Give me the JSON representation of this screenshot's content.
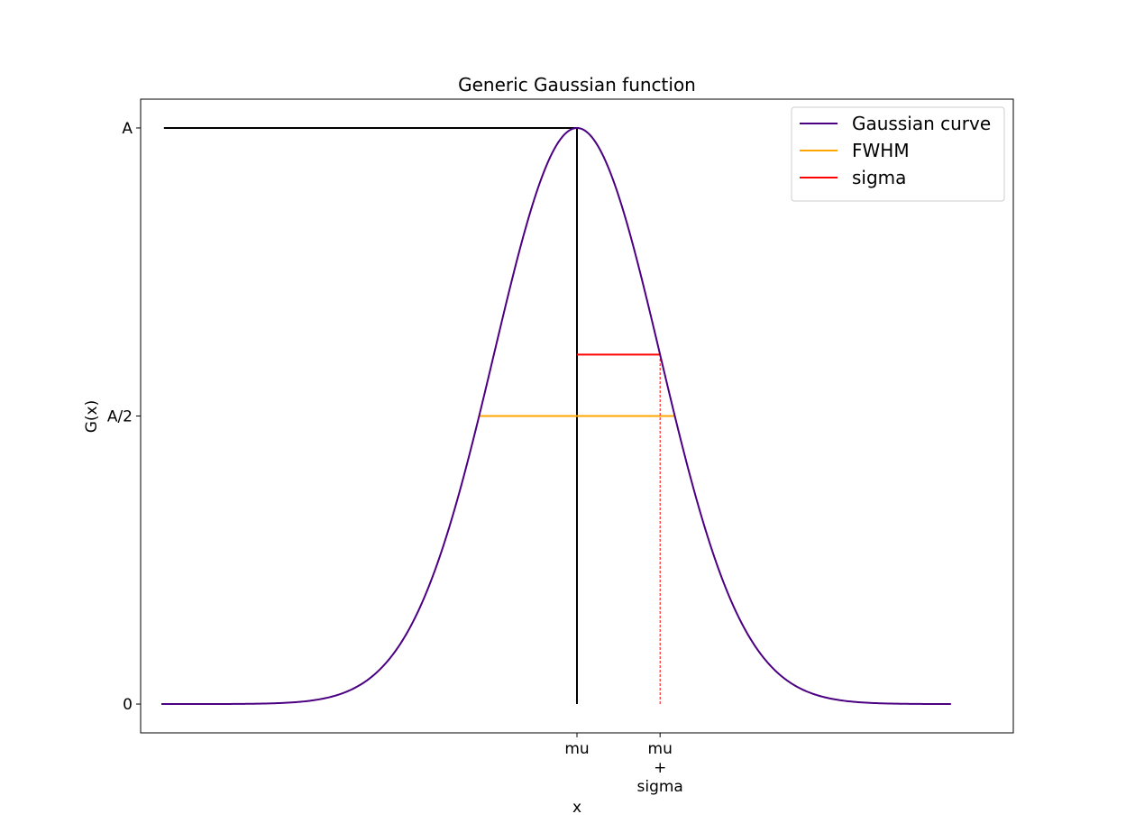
{
  "chart_data": {
    "type": "line",
    "title": "Generic Gaussian function",
    "xlabel": "x",
    "ylabel": "G(x)",
    "xlim": [
      -5.25,
      5.25
    ],
    "ylim": [
      -0.05,
      1.05
    ],
    "grid": false,
    "legend_position": "top-right",
    "gaussian": {
      "amplitude": 1,
      "mu": 0,
      "sigma": 1,
      "x_start": -5,
      "x_end": 4.5
    },
    "x_ticks": [
      {
        "value": 0,
        "label": "mu"
      },
      {
        "value": 1,
        "label": "mu\n+\nsigma"
      }
    ],
    "y_ticks": [
      {
        "value": 0,
        "label": "0"
      },
      {
        "value": 0.5,
        "label": "A/2"
      },
      {
        "value": 1,
        "label": "A"
      }
    ],
    "series": [
      {
        "name": "Gaussian curve",
        "color": "#4b0082"
      },
      {
        "name": "FWHM",
        "color": "#ffa500"
      },
      {
        "name": "sigma",
        "color": "#ff0000"
      }
    ],
    "annotations": {
      "amplitude_line": {
        "x": [
          -4.97,
          0
        ],
        "y": 1,
        "color": "#000000"
      },
      "mu_line": {
        "x": 0,
        "y": [
          0,
          1
        ],
        "color": "#000000"
      },
      "fwhm_line": {
        "x": [
          -1.1774,
          1.1774
        ],
        "y": 0.5,
        "color": "#ffa500"
      },
      "sigma_line": {
        "x": [
          0,
          1
        ],
        "y": 0.6065,
        "color": "#ff0000"
      },
      "sigma_drop": {
        "x": 1,
        "y": [
          0,
          0.6065
        ],
        "color": "#ff0000",
        "dashed": true
      }
    }
  }
}
